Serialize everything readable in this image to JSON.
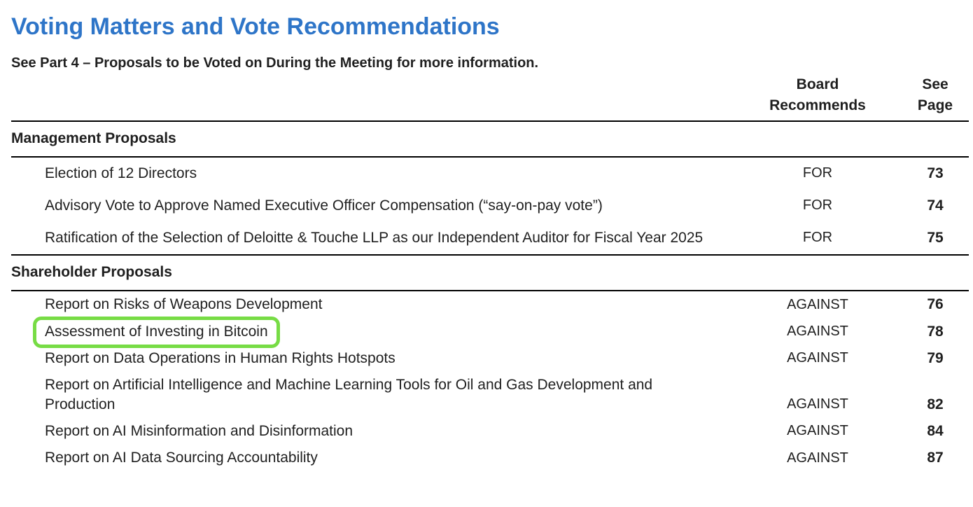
{
  "document": {
    "title": "Voting Matters and Vote Recommendations",
    "subtitle": "See Part 4 – Proposals to be Voted on During the Meeting for more information.",
    "columns": {
      "recommends": "Board\nRecommends",
      "see_page": "See\nPage"
    },
    "sections": [
      {
        "heading": "Management Proposals",
        "rows": [
          {
            "proposal": "Election of 12 Directors",
            "recommendation": "FOR",
            "page": "73",
            "highlighted": false
          },
          {
            "proposal": "Advisory Vote to Approve Named Executive Officer Compensation (“say-on-pay vote”)",
            "recommendation": "FOR",
            "page": "74",
            "highlighted": false
          },
          {
            "proposal": "Ratification of the Selection of Deloitte & Touche LLP as our Independent Auditor for Fiscal Year 2025",
            "recommendation": "FOR",
            "page": "75",
            "highlighted": false
          }
        ]
      },
      {
        "heading": "Shareholder Proposals",
        "rows": [
          {
            "proposal": "Report on Risks of Weapons Development",
            "recommendation": "AGAINST",
            "page": "76",
            "highlighted": false
          },
          {
            "proposal": "Assessment of Investing in Bitcoin",
            "recommendation": "AGAINST",
            "page": "78",
            "highlighted": true
          },
          {
            "proposal": "Report on Data Operations in Human Rights Hotspots",
            "recommendation": "AGAINST",
            "page": "79",
            "highlighted": false
          },
          {
            "proposal": "Report on Artificial Intelligence and Machine Learning Tools for Oil and Gas Development and Production",
            "recommendation": "AGAINST",
            "page": "82",
            "highlighted": false
          },
          {
            "proposal": "Report on AI Misinformation and Disinformation",
            "recommendation": "AGAINST",
            "page": "84",
            "highlighted": false
          },
          {
            "proposal": "Report on AI Data Sourcing Accountability",
            "recommendation": "AGAINST",
            "page": "87",
            "highlighted": false
          }
        ]
      }
    ]
  },
  "colors": {
    "title_blue": "#2e75c8",
    "highlight_green": "#77dc45",
    "text": "#1f1f1f",
    "rule": "#000000"
  }
}
